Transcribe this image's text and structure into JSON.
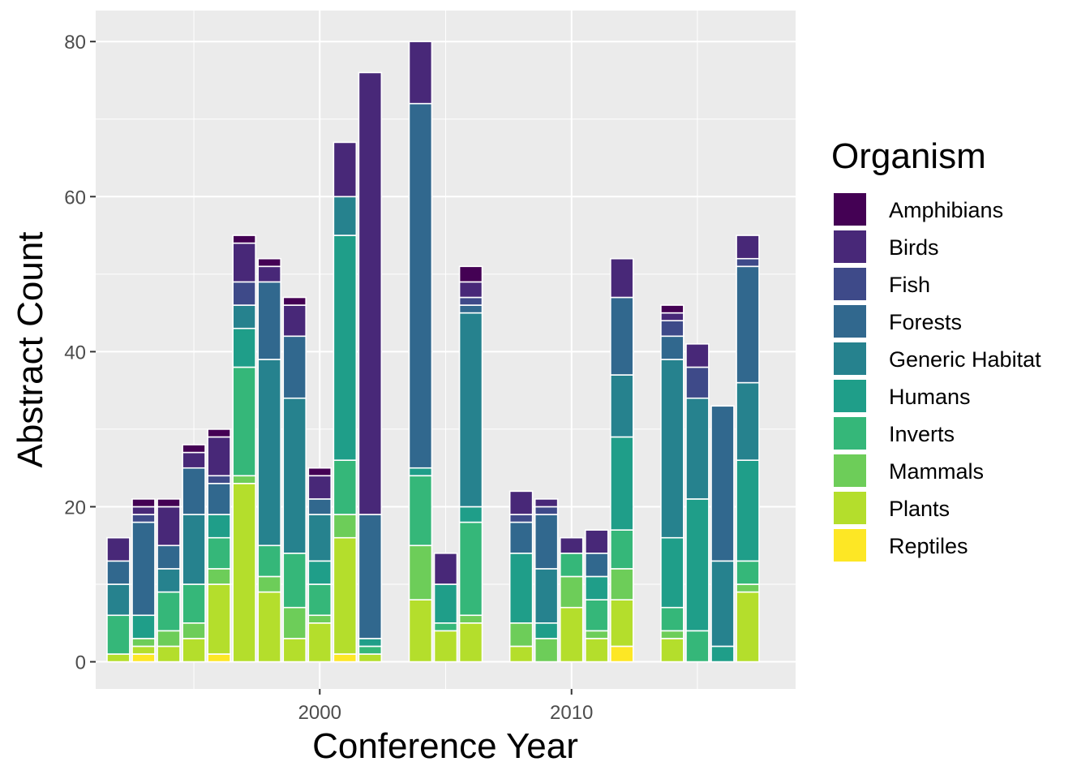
{
  "chart_data": {
    "type": "bar",
    "stacked": true,
    "xlabel": "Conference Year",
    "ylabel": "Abstract Count",
    "xlim": [
      1991.1,
      2018.9
    ],
    "ylim": [
      -3.5,
      84
    ],
    "x_ticks": [
      2000,
      2010
    ],
    "y_ticks": [
      0,
      20,
      40,
      60,
      80
    ],
    "grid": true,
    "legend": {
      "title": "Organism",
      "position": "right",
      "entries": [
        "Amphibians",
        "Birds",
        "Fish",
        "Forests",
        "Generic Habitat",
        "Humans",
        "Inverts",
        "Mammals",
        "Plants",
        "Reptiles"
      ]
    },
    "colors": {
      "Amphibians": "#440154",
      "Birds": "#482878",
      "Fish": "#3E4A89",
      "Forests": "#31688E",
      "Generic Habitat": "#26828E",
      "Humans": "#1F9E89",
      "Inverts": "#35B779",
      "Mammals": "#6DCD59",
      "Plants": "#B4DE2C",
      "Reptiles": "#FDE725"
    },
    "x": [
      1992,
      1993,
      1994,
      1995,
      1996,
      1997,
      1998,
      1999,
      2000,
      2001,
      2002,
      2004,
      2005,
      2006,
      2008,
      2009,
      2010,
      2011,
      2012,
      2014,
      2015,
      2016,
      2017
    ],
    "series": [
      {
        "name": "Reptiles",
        "values": [
          0,
          1,
          0,
          0,
          1,
          0,
          0,
          0,
          0,
          1,
          0,
          0,
          0,
          0,
          0,
          0,
          0,
          0,
          2,
          0,
          0,
          0,
          0
        ]
      },
      {
        "name": "Plants",
        "values": [
          1,
          1,
          2,
          3,
          9,
          23,
          9,
          3,
          5,
          15,
          1,
          8,
          4,
          5,
          2,
          0,
          7,
          3,
          6,
          3,
          0,
          0,
          9
        ]
      },
      {
        "name": "Mammals",
        "values": [
          0,
          1,
          2,
          2,
          2,
          1,
          2,
          4,
          1,
          3,
          0,
          7,
          0,
          1,
          3,
          3,
          4,
          1,
          4,
          1,
          0,
          0,
          1
        ]
      },
      {
        "name": "Inverts",
        "values": [
          5,
          0,
          5,
          5,
          4,
          14,
          4,
          7,
          4,
          7,
          1,
          9,
          1,
          12,
          0,
          0,
          3,
          4,
          5,
          3,
          4,
          0,
          3
        ]
      },
      {
        "name": "Humans",
        "values": [
          0,
          3,
          0,
          0,
          3,
          5,
          0,
          0,
          3,
          29,
          1,
          1,
          5,
          2,
          9,
          2,
          0,
          3,
          12,
          9,
          17,
          2,
          13
        ]
      },
      {
        "name": "Generic Habitat",
        "values": [
          4,
          0,
          3,
          9,
          0,
          3,
          24,
          20,
          6,
          5,
          0,
          0,
          0,
          25,
          0,
          7,
          0,
          0,
          8,
          23,
          13,
          11,
          10
        ]
      },
      {
        "name": "Forests",
        "values": [
          3,
          12,
          3,
          6,
          4,
          0,
          10,
          8,
          2,
          0,
          16,
          47,
          0,
          1,
          4,
          7,
          0,
          3,
          10,
          3,
          0,
          20,
          15
        ]
      },
      {
        "name": "Fish",
        "values": [
          0,
          1,
          0,
          0,
          1,
          3,
          0,
          0,
          0,
          0,
          0,
          0,
          0,
          1,
          1,
          1,
          0,
          0,
          0,
          2,
          4,
          0,
          1
        ]
      },
      {
        "name": "Birds",
        "values": [
          3,
          1,
          5,
          2,
          5,
          5,
          2,
          4,
          3,
          7,
          57,
          8,
          4,
          2,
          3,
          1,
          2,
          3,
          5,
          1,
          3,
          0,
          3
        ]
      },
      {
        "name": "Amphibians",
        "values": [
          0,
          1,
          1,
          1,
          1,
          1,
          1,
          1,
          1,
          0,
          0,
          0,
          0,
          2,
          0,
          0,
          0,
          0,
          0,
          1,
          0,
          0,
          0
        ]
      }
    ]
  }
}
